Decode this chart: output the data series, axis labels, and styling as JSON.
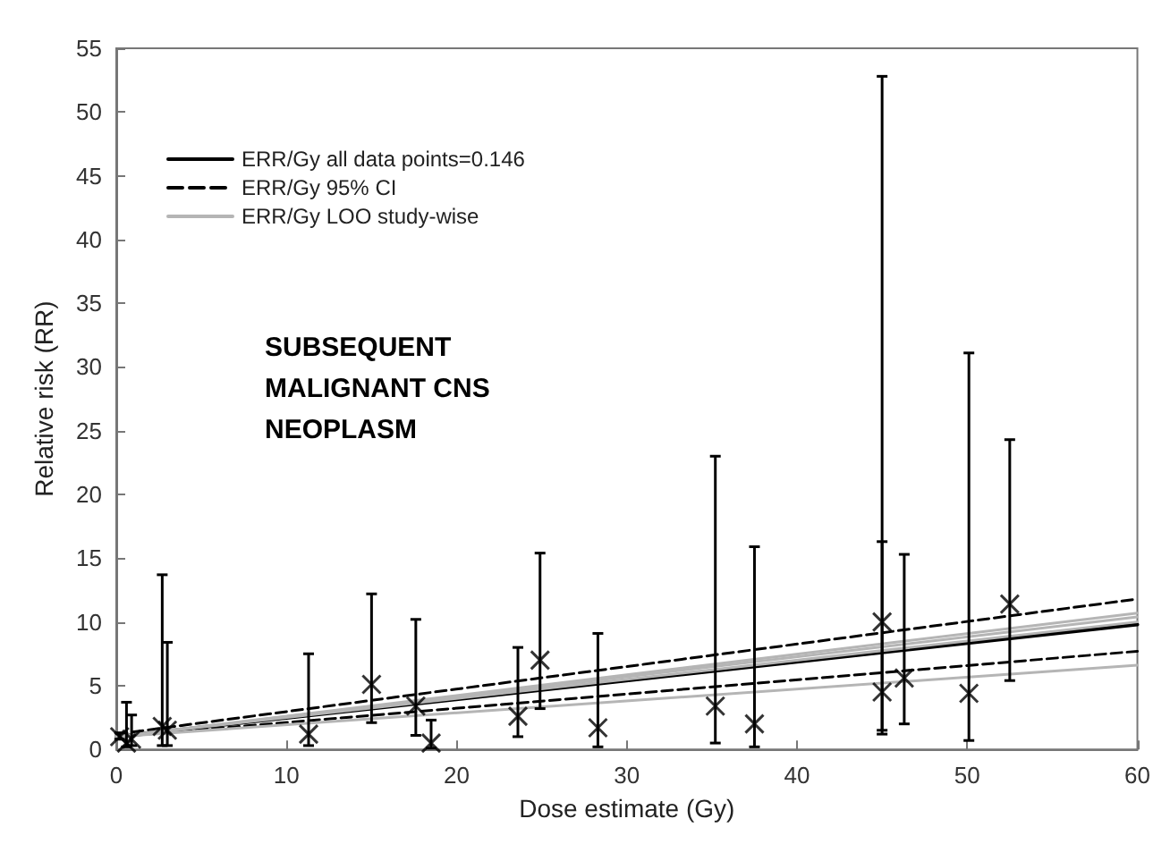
{
  "chart_data": {
    "type": "scatter",
    "xlabel": "Dose estimate (Gy)",
    "ylabel": "Relative risk (RR)",
    "annotations": [
      "SUBSEQUENT\nMALIGNANT CNS\nNEOPLASM"
    ],
    "xlim": [
      0,
      60
    ],
    "xticks": [
      0,
      10,
      20,
      30,
      40,
      50,
      60
    ],
    "ylim": [
      0,
      55
    ],
    "yticks": [
      0,
      5,
      10,
      15,
      20,
      25,
      30,
      35,
      40,
      45,
      50,
      55
    ],
    "grid": false,
    "legend": "top left",
    "series": [
      {
        "marker": "cross",
        "color": "#000000",
        "x": [
          0.2,
          0.6,
          0.9,
          2.7,
          3.0,
          11.3,
          15.0,
          17.6,
          18.5,
          23.6,
          24.9,
          28.3,
          35.2,
          37.5,
          45.0,
          45.0,
          46.3,
          50.1,
          52.5
        ],
        "values": [
          1.0,
          0.5,
          0.8,
          1.8,
          1.5,
          1.2,
          5.1,
          3.4,
          0.5,
          2.6,
          7.0,
          1.7,
          3.4,
          2.0,
          10.0,
          4.5,
          5.6,
          4.4,
          11.4
        ],
        "errors": [
          [
            0.8,
            1.3
          ],
          [
            0.2,
            3.7
          ],
          [
            0.3,
            2.7
          ],
          [
            0.3,
            13.7
          ],
          [
            0.3,
            8.4
          ],
          [
            0.3,
            7.5
          ],
          [
            2.1,
            12.2
          ],
          [
            1.1,
            10.2
          ],
          [
            0.1,
            2.3
          ],
          [
            1.0,
            8.0
          ],
          [
            3.2,
            15.4
          ],
          [
            0.2,
            9.1
          ],
          [
            0.5,
            23.0
          ],
          [
            0.2,
            15.9
          ],
          [
            1.5,
            52.8
          ],
          [
            1.2,
            16.3
          ],
          [
            2.0,
            15.3
          ],
          [
            0.7,
            31.1
          ],
          [
            5.4,
            24.3
          ]
        ]
      },
      {
        "type": "line",
        "name": "ERR/Gy all data points=0.146",
        "color": "#000000",
        "line_style": "solid",
        "x": [
          0,
          60
        ],
        "values": [
          1.0,
          9.8
        ]
      },
      {
        "type": "line",
        "name": "ERR/Gy 95% CI",
        "color": "#000000",
        "line_style": "dashed",
        "x": [
          0,
          60
        ],
        "values": [
          1.2,
          11.8
        ]
      },
      {
        "type": "line",
        "color": "#000000",
        "line_style": "dashed",
        "x": [
          0,
          60
        ],
        "values": [
          1.0,
          7.7
        ]
      },
      {
        "type": "line",
        "name": "ERR/Gy LOO study-wise",
        "color": "#b5b5b5",
        "line_style": "solid",
        "x": [
          0,
          60
        ],
        "values": [
          1.0,
          10.7
        ]
      },
      {
        "type": "line",
        "color": "#b5b5b5",
        "line_style": "solid",
        "x": [
          0,
          60
        ],
        "values": [
          1.0,
          10.4
        ]
      },
      {
        "type": "line",
        "color": "#b5b5b5",
        "line_style": "solid",
        "x": [
          0,
          60
        ],
        "values": [
          1.0,
          10.0
        ]
      },
      {
        "type": "line",
        "color": "#b5b5b5",
        "line_style": "solid",
        "x": [
          0,
          60
        ],
        "values": [
          1.0,
          6.6
        ]
      }
    ]
  }
}
